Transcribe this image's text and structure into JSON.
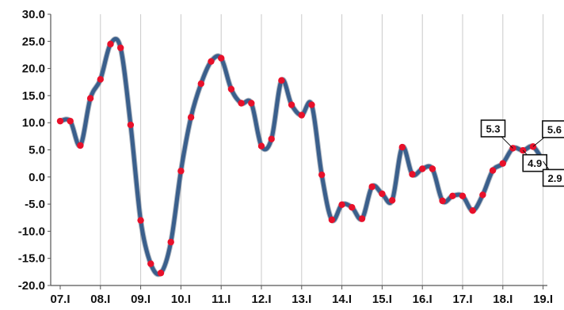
{
  "chart_data": {
    "type": "line",
    "title": "",
    "xlabel": "",
    "ylabel": "",
    "ylim": [
      -20,
      30
    ],
    "y_ticks": [
      "30.0",
      "25.0",
      "20.0",
      "15.0",
      "10.0",
      "5.0",
      "0.0",
      "-5.0",
      "-10.0",
      "-15.0",
      "-20.0"
    ],
    "x_ticks": [
      "07.I",
      "08.I",
      "09.I",
      "10.I",
      "11.I",
      "12.I",
      "13.I",
      "14.I",
      "15.I",
      "16.I",
      "17.I",
      "18.I",
      "19.I"
    ],
    "grid": {
      "vertical": true,
      "horizontal": false
    },
    "series": [
      {
        "line_color": "#3a5f8c",
        "marker_color": "#e8102a",
        "x": [
          0,
          0.25,
          0.5,
          0.75,
          1.0,
          1.25,
          1.5,
          1.75,
          2.0,
          2.25,
          2.5,
          2.75,
          3.0,
          3.25,
          3.5,
          3.75,
          4.0,
          4.25,
          4.5,
          4.75,
          5.0,
          5.25,
          5.5,
          5.75,
          6.0,
          6.25,
          6.5,
          6.75,
          7.0,
          7.25,
          7.5,
          7.75,
          8.0,
          8.25,
          8.5,
          8.75,
          9.0,
          9.25,
          9.5,
          9.75,
          10.0,
          10.25,
          10.5,
          10.75,
          11.0,
          11.25,
          11.5,
          11.75,
          12.0
        ],
        "values": [
          10.3,
          10.3,
          5.8,
          14.5,
          18.0,
          24.5,
          23.8,
          9.6,
          -8.0,
          -16.0,
          -17.7,
          -12.0,
          1.1,
          11.0,
          17.2,
          21.3,
          21.9,
          16.2,
          13.6,
          13.6,
          5.7,
          7.0,
          17.8,
          13.3,
          11.4,
          13.3,
          0.4,
          -7.9,
          -5.1,
          -5.6,
          -7.7,
          -1.8,
          -3.1,
          -4.3,
          5.5,
          0.5,
          1.5,
          1.5,
          -4.4,
          -3.5,
          -3.5,
          -6.2,
          -3.3,
          1.2,
          2.5,
          5.3,
          4.9,
          5.6,
          2.9
        ]
      }
    ],
    "annotations": [
      {
        "text": "5.3",
        "x": 11.25,
        "y": 5.3
      },
      {
        "text": "4.9",
        "x": 11.5,
        "y": 4.9
      },
      {
        "text": "5.6",
        "x": 11.75,
        "y": 5.6
      },
      {
        "text": "2.9",
        "x": 12.0,
        "y": 2.9
      }
    ]
  }
}
